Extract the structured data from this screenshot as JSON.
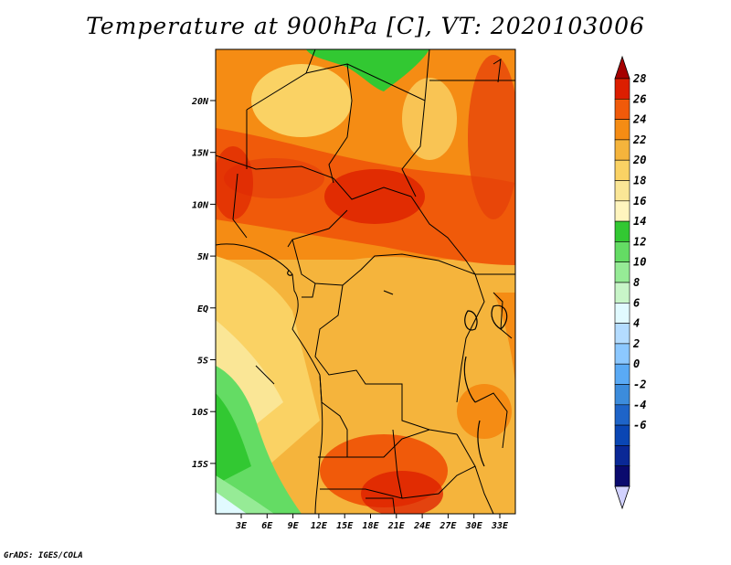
{
  "title": "Temperature at 900hPa [C], VT: 2020103006",
  "footer": "GrADS: IGES/COLA",
  "map": {
    "variable": "Temperature",
    "level": "900hPa",
    "units": "C",
    "valid_time": "2020103006",
    "lat_labels": [
      "20N",
      "15N",
      "10N",
      "5N",
      "EQ",
      "5S",
      "10S",
      "15S"
    ],
    "lon_labels": [
      "3E",
      "6E",
      "9E",
      "12E",
      "15E",
      "18E",
      "21E",
      "24E",
      "27E",
      "30E",
      "33E"
    ]
  },
  "colorbar": {
    "labels": [
      "28",
      "26",
      "24",
      "22",
      "20",
      "18",
      "16",
      "14",
      "12",
      "10",
      "8",
      "6",
      "4",
      "2",
      "0",
      "-2",
      "-4",
      "-6"
    ],
    "colors": [
      "#a50000",
      "#dc1e00",
      "#f05a0a",
      "#f58c14",
      "#f5b43c",
      "#fad264",
      "#fae696",
      "#fff5be",
      "#32c832",
      "#64dc64",
      "#96eb96",
      "#c8f5c8",
      "#e1faff",
      "#b4dcff",
      "#8cc8ff",
      "#5aaaf5",
      "#3c8cdc",
      "#1e64c8",
      "#0a46b4",
      "#0a2896",
      "#0a0a6e",
      "#d2d2ff"
    ]
  }
}
